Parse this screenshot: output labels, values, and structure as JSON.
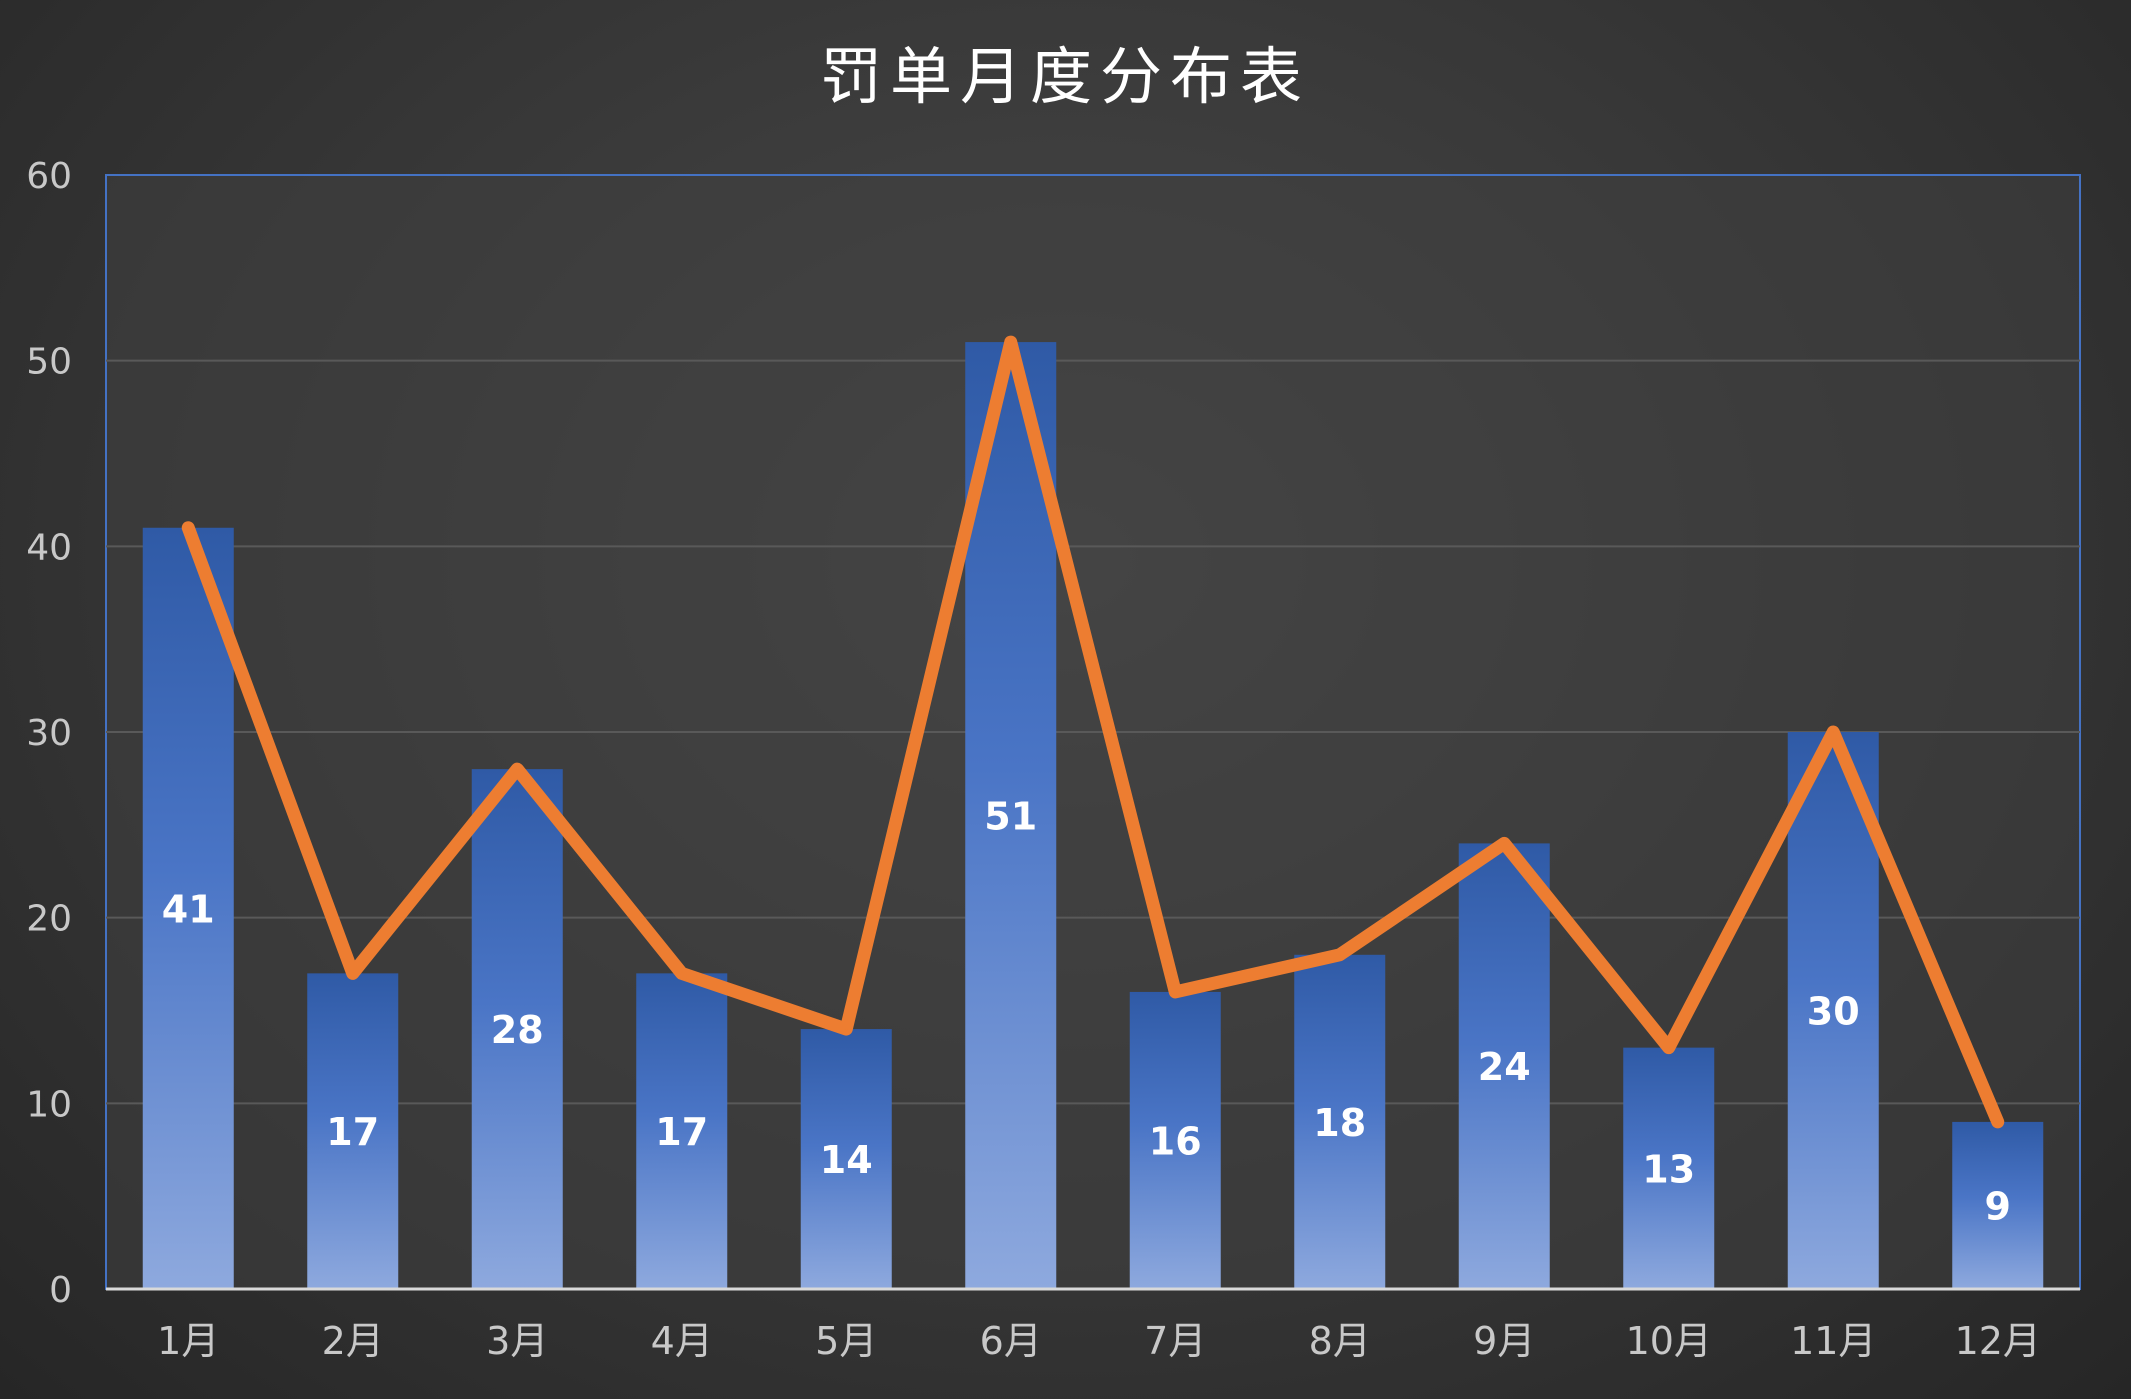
{
  "chart_data": {
    "type": "bar",
    "title": "罚单月度分布表",
    "categories": [
      "1月",
      "2月",
      "3月",
      "4月",
      "5月",
      "6月",
      "7月",
      "8月",
      "9月",
      "10月",
      "11月",
      "12月"
    ],
    "series": [
      {
        "type": "bar",
        "values": [
          41,
          17,
          28,
          17,
          14,
          51,
          16,
          18,
          24,
          13,
          30,
          9
        ]
      },
      {
        "type": "line",
        "values": [
          41,
          17,
          28,
          17,
          14,
          51,
          16,
          18,
          24,
          13,
          30,
          9
        ]
      }
    ],
    "ylim": [
      0,
      60
    ],
    "yticks": [
      "0",
      "10",
      "20",
      "30",
      "40",
      "50",
      "60"
    ],
    "grid": true,
    "colors": {
      "bar_top": "#2f5aa6",
      "bar_bottom": "#8ea9de",
      "line": "#ed7d31",
      "plot_border": "#4472c4",
      "grid": "#595959"
    }
  }
}
